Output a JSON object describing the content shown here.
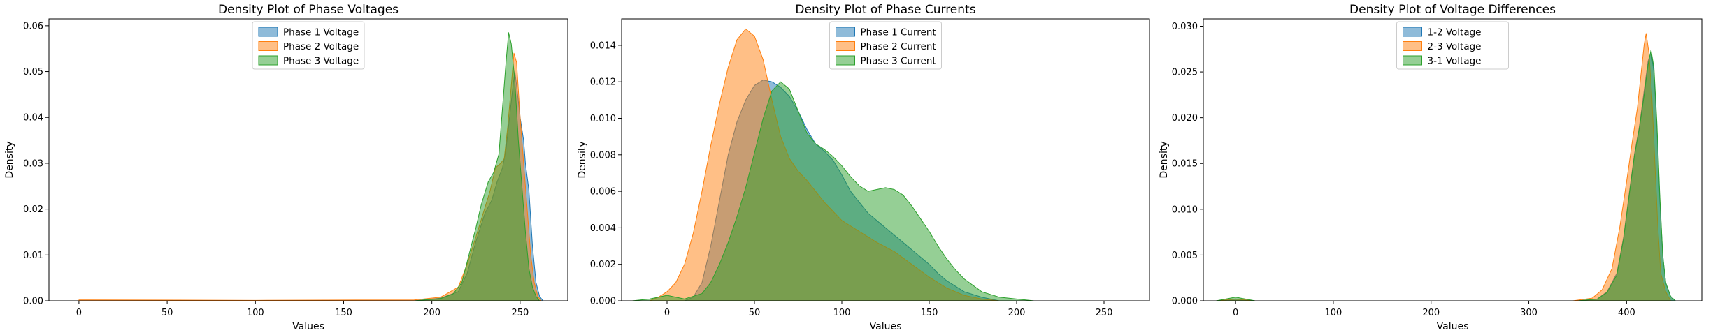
{
  "chart_data": [
    {
      "type": "area",
      "title": "Density Plot of Phase Voltages",
      "xlabel": "Values",
      "ylabel": "Density",
      "xlim": [
        -17,
        277
      ],
      "ylim": [
        0,
        0.0615
      ],
      "xticks": [
        0,
        50,
        100,
        150,
        200,
        250
      ],
      "yticks": [
        0.0,
        0.01,
        0.02,
        0.03,
        0.04,
        0.05,
        0.06
      ],
      "ytick_labels": [
        "0.00",
        "0.01",
        "0.02",
        "0.03",
        "0.04",
        "0.05",
        "0.06"
      ],
      "legend_position": "top-center",
      "series": [
        {
          "name": "Phase 1 Voltage",
          "color": "#1f77b4",
          "points": [
            [
              0,
              0
            ],
            [
              100,
              0
            ],
            [
              190,
              0
            ],
            [
              205,
              0.0006
            ],
            [
              215,
              0.002
            ],
            [
              220,
              0.006
            ],
            [
              225,
              0.013
            ],
            [
              230,
              0.019
            ],
            [
              234,
              0.022
            ],
            [
              237,
              0.026
            ],
            [
              240,
              0.029
            ],
            [
              242,
              0.033
            ],
            [
              244,
              0.04
            ],
            [
              246,
              0.047
            ],
            [
              247,
              0.05
            ],
            [
              248,
              0.047
            ],
            [
              250,
              0.04
            ],
            [
              252,
              0.035
            ],
            [
              253,
              0.03
            ],
            [
              255,
              0.024
            ],
            [
              257,
              0.012
            ],
            [
              259,
              0.004
            ],
            [
              261,
              0.001
            ],
            [
              263,
              0
            ]
          ]
        },
        {
          "name": "Phase 2 Voltage",
          "color": "#ff7f0e",
          "points": [
            [
              0,
              0.0002
            ],
            [
              100,
              0.0001
            ],
            [
              190,
              0.0002
            ],
            [
              205,
              0.0008
            ],
            [
              215,
              0.003
            ],
            [
              220,
              0.008
            ],
            [
              225,
              0.014
            ],
            [
              229,
              0.019
            ],
            [
              233,
              0.024
            ],
            [
              236,
              0.029
            ],
            [
              239,
              0.03
            ],
            [
              241,
              0.031
            ],
            [
              243,
              0.038
            ],
            [
              245,
              0.047
            ],
            [
              246.5,
              0.054
            ],
            [
              248,
              0.052
            ],
            [
              250,
              0.04
            ],
            [
              252,
              0.03
            ],
            [
              254,
              0.02
            ],
            [
              256,
              0.01
            ],
            [
              258,
              0.004
            ],
            [
              260,
              0.001
            ],
            [
              262,
              0
            ]
          ]
        },
        {
          "name": "Phase 3 Voltage",
          "color": "#2ca02c",
          "points": [
            [
              0,
              0
            ],
            [
              100,
              0
            ],
            [
              190,
              0
            ],
            [
              205,
              0.0005
            ],
            [
              212,
              0.0015
            ],
            [
              217,
              0.004
            ],
            [
              221,
              0.01
            ],
            [
              225,
              0.016
            ],
            [
              228,
              0.021
            ],
            [
              232,
              0.026
            ],
            [
              235,
              0.028
            ],
            [
              238,
              0.032
            ],
            [
              240,
              0.042
            ],
            [
              242,
              0.052
            ],
            [
              243.5,
              0.0585
            ],
            [
              245,
              0.056
            ],
            [
              247,
              0.048
            ],
            [
              249,
              0.035
            ],
            [
              251,
              0.025
            ],
            [
              253,
              0.015
            ],
            [
              255,
              0.007
            ],
            [
              257,
              0.003
            ],
            [
              259,
              0.001
            ],
            [
              261,
              0
            ]
          ]
        }
      ]
    },
    {
      "type": "area",
      "title": "Density Plot of Phase Currents",
      "xlabel": "Values",
      "ylabel": "Density",
      "xlim": [
        -26,
        276
      ],
      "ylim": [
        0,
        0.01545
      ],
      "xticks": [
        0,
        50,
        100,
        150,
        200,
        250
      ],
      "yticks": [
        0.0,
        0.002,
        0.004,
        0.006,
        0.008,
        0.01,
        0.012,
        0.014
      ],
      "ytick_labels": [
        "0.000",
        "0.002",
        "0.004",
        "0.006",
        "0.008",
        "0.010",
        "0.012",
        "0.014"
      ],
      "legend_position": "top-center",
      "series": [
        {
          "name": "Phase 1 Current",
          "color": "#1f77b4",
          "points": [
            [
              10,
              0
            ],
            [
              15,
              0.0002
            ],
            [
              20,
              0.001
            ],
            [
              25,
              0.003
            ],
            [
              30,
              0.0055
            ],
            [
              35,
              0.008
            ],
            [
              40,
              0.0098
            ],
            [
              45,
              0.011
            ],
            [
              50,
              0.0118
            ],
            [
              55,
              0.0121
            ],
            [
              60,
              0.012
            ],
            [
              65,
              0.0117
            ],
            [
              70,
              0.0112
            ],
            [
              75,
              0.0104
            ],
            [
              80,
              0.0094
            ],
            [
              85,
              0.0086
            ],
            [
              90,
              0.0082
            ],
            [
              95,
              0.0077
            ],
            [
              100,
              0.0069
            ],
            [
              105,
              0.006
            ],
            [
              110,
              0.0054
            ],
            [
              115,
              0.0048
            ],
            [
              120,
              0.0044
            ],
            [
              125,
              0.004
            ],
            [
              130,
              0.0036
            ],
            [
              135,
              0.0032
            ],
            [
              140,
              0.0028
            ],
            [
              145,
              0.0024
            ],
            [
              150,
              0.002
            ],
            [
              155,
              0.0015
            ],
            [
              160,
              0.0011
            ],
            [
              165,
              0.0008
            ],
            [
              170,
              0.0005
            ],
            [
              180,
              0.0002
            ],
            [
              190,
              0
            ]
          ]
        },
        {
          "name": "Phase 2 Current",
          "color": "#ff7f0e",
          "points": [
            [
              -10,
              0
            ],
            [
              -5,
              0.0002
            ],
            [
              0,
              0.0005
            ],
            [
              5,
              0.001
            ],
            [
              10,
              0.002
            ],
            [
              15,
              0.0037
            ],
            [
              20,
              0.006
            ],
            [
              25,
              0.0085
            ],
            [
              30,
              0.0108
            ],
            [
              35,
              0.0128
            ],
            [
              40,
              0.0143
            ],
            [
              45,
              0.0149
            ],
            [
              50,
              0.0145
            ],
            [
              55,
              0.0132
            ],
            [
              60,
              0.011
            ],
            [
              65,
              0.009
            ],
            [
              70,
              0.0078
            ],
            [
              75,
              0.0071
            ],
            [
              80,
              0.0066
            ],
            [
              85,
              0.006
            ],
            [
              90,
              0.0054
            ],
            [
              95,
              0.0049
            ],
            [
              100,
              0.0044
            ],
            [
              110,
              0.0038
            ],
            [
              120,
              0.0032
            ],
            [
              130,
              0.0027
            ],
            [
              140,
              0.002
            ],
            [
              150,
              0.0013
            ],
            [
              160,
              0.0007
            ],
            [
              170,
              0.0003
            ],
            [
              180,
              0.0001
            ],
            [
              190,
              0
            ]
          ]
        },
        {
          "name": "Phase 3 Current",
          "color": "#2ca02c",
          "points": [
            [
              -20,
              0
            ],
            [
              -10,
              0.0001
            ],
            [
              0,
              0.0003
            ],
            [
              10,
              0.0001
            ],
            [
              20,
              0.0004
            ],
            [
              25,
              0.001
            ],
            [
              30,
              0.002
            ],
            [
              35,
              0.0032
            ],
            [
              40,
              0.0046
            ],
            [
              45,
              0.0062
            ],
            [
              50,
              0.0081
            ],
            [
              55,
              0.01
            ],
            [
              60,
              0.0115
            ],
            [
              65,
              0.012
            ],
            [
              70,
              0.0116
            ],
            [
              75,
              0.0104
            ],
            [
              80,
              0.0092
            ],
            [
              85,
              0.0086
            ],
            [
              90,
              0.0083
            ],
            [
              95,
              0.0079
            ],
            [
              100,
              0.0074
            ],
            [
              105,
              0.0068
            ],
            [
              110,
              0.0063
            ],
            [
              115,
              0.006
            ],
            [
              120,
              0.0061
            ],
            [
              125,
              0.0062
            ],
            [
              130,
              0.0061
            ],
            [
              135,
              0.0058
            ],
            [
              140,
              0.0052
            ],
            [
              145,
              0.0045
            ],
            [
              150,
              0.0038
            ],
            [
              155,
              0.003
            ],
            [
              160,
              0.0023
            ],
            [
              165,
              0.0017
            ],
            [
              170,
              0.0012
            ],
            [
              180,
              0.0005
            ],
            [
              190,
              0.0002
            ],
            [
              200,
              0.0001
            ],
            [
              210,
              0
            ]
          ]
        }
      ]
    },
    {
      "type": "area",
      "title": "Density Plot of Voltage Differences",
      "xlabel": "Values",
      "ylabel": "Density",
      "xlim": [
        -33,
        477
      ],
      "ylim": [
        0,
        0.0308
      ],
      "xticks": [
        0,
        100,
        200,
        300,
        400
      ],
      "yticks": [
        0.0,
        0.005,
        0.01,
        0.015,
        0.02,
        0.025,
        0.03
      ],
      "ytick_labels": [
        "0.000",
        "0.005",
        "0.010",
        "0.015",
        "0.020",
        "0.025",
        "0.030"
      ],
      "legend_position": "top-center",
      "series": [
        {
          "name": "1-2 Voltage",
          "color": "#1f77b4",
          "points": [
            [
              -20,
              0
            ],
            [
              -10,
              0.0001
            ],
            [
              0,
              0.0002
            ],
            [
              10,
              0.0001
            ],
            [
              20,
              0
            ],
            [
              350,
              0
            ],
            [
              370,
              0.0002
            ],
            [
              380,
              0.001
            ],
            [
              390,
              0.003
            ],
            [
              397,
              0.007
            ],
            [
              403,
              0.012
            ],
            [
              408,
              0.016
            ],
            [
              413,
              0.019
            ],
            [
              418,
              0.023
            ],
            [
              422,
              0.0262
            ],
            [
              425,
              0.0272
            ],
            [
              428,
              0.025
            ],
            [
              431,
              0.019
            ],
            [
              434,
              0.011
            ],
            [
              437,
              0.005
            ],
            [
              440,
              0.002
            ],
            [
              445,
              0.0005
            ],
            [
              450,
              0
            ]
          ]
        },
        {
          "name": "2-3 Voltage",
          "color": "#ff7f0e",
          "points": [
            [
              -20,
              0
            ],
            [
              -10,
              0.0001
            ],
            [
              0,
              0.0002
            ],
            [
              10,
              0.0001
            ],
            [
              20,
              0
            ],
            [
              345,
              0
            ],
            [
              365,
              0.0003
            ],
            [
              375,
              0.0012
            ],
            [
              385,
              0.0035
            ],
            [
              393,
              0.008
            ],
            [
              400,
              0.013
            ],
            [
              406,
              0.0175
            ],
            [
              411,
              0.021
            ],
            [
              415,
              0.025
            ],
            [
              418,
              0.028
            ],
            [
              420,
              0.0292
            ],
            [
              423,
              0.027
            ],
            [
              426,
              0.022
            ],
            [
              429,
              0.015
            ],
            [
              432,
              0.008
            ],
            [
              435,
              0.003
            ],
            [
              440,
              0.001
            ],
            [
              445,
              0
            ]
          ]
        },
        {
          "name": "3-1 Voltage",
          "color": "#2ca02c",
          "points": [
            [
              -20,
              0
            ],
            [
              -10,
              0.0002
            ],
            [
              0,
              0.0004
            ],
            [
              10,
              0.0002
            ],
            [
              20,
              0
            ],
            [
              350,
              0
            ],
            [
              370,
              0.0002
            ],
            [
              380,
              0.0009
            ],
            [
              390,
              0.0028
            ],
            [
              397,
              0.0068
            ],
            [
              403,
              0.0118
            ],
            [
              408,
              0.0158
            ],
            [
              413,
              0.0188
            ],
            [
              418,
              0.0225
            ],
            [
              422,
              0.0258
            ],
            [
              425,
              0.0274
            ],
            [
              428,
              0.0255
            ],
            [
              431,
              0.0195
            ],
            [
              434,
              0.0115
            ],
            [
              437,
              0.005
            ],
            [
              440,
              0.002
            ],
            [
              445,
              0.0005
            ],
            [
              450,
              0
            ]
          ]
        }
      ]
    }
  ]
}
